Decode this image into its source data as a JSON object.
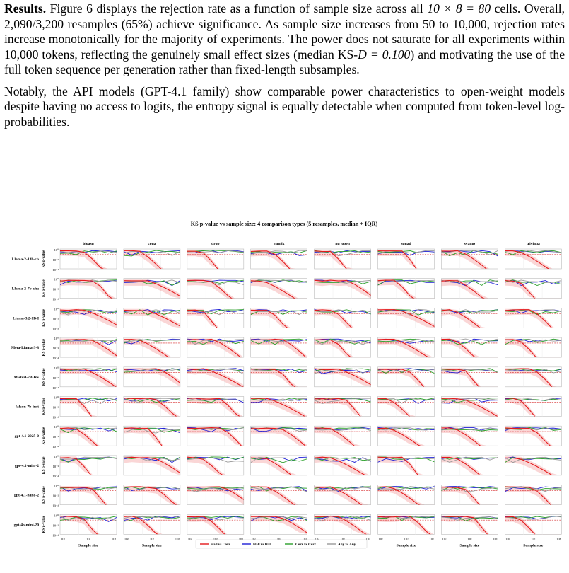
{
  "paragraph1": {
    "run_head": "Results.",
    "p1_a": " Figure 6 displays the rejection rate as a function of sample size across all ",
    "p1_math": "10 × 8 = 80",
    "p1_b": " cells. Overall, 2,090/3,200 resamples (65%) achieve significance. As sample size increases from 50 to 10,000, rejection rates increase monotonically for the majority of experiments. The power does not saturate for all experiments within 10,000 tokens, reflecting the genuinely small effect sizes (median KS-",
    "p1_math2": "D = 0.100",
    "p1_c": ") and motivating the use of the full token sequence per generation rather than fixed-length subsamples."
  },
  "paragraph2": "Notably, the API models (GPT-4.1 family) show comparable power characteristics to open-weight models despite having no access to logits, the entropy signal is equally detectable when computed from token-level log-probabilities.",
  "figure": {
    "title": "KS p-value vs sample size: 4 comparison types (5 resamples, median + IQR)",
    "columns": [
      "bioasq",
      "coqa",
      "drop",
      "gsm8k",
      "nq_open",
      "squad",
      "svamp",
      "triviaqa"
    ],
    "rows": [
      "Llama-2-13b-ch",
      "Llama-2-7b-cha",
      "Llama-3.2-1B-I",
      "Meta-Llama-3-8",
      "Mistral-7B-Ins",
      "falcon-7b-inst",
      "gpt-4.1-2025-0",
      "gpt-4.1-mini-2",
      "gpt-4.1-nano-2",
      "gpt-4o-mini-20"
    ],
    "ylabel": "KS p-value",
    "xlabel": "Sample size",
    "y_ticks": [
      "10⁰",
      "10⁻²",
      "10⁻⁴"
    ],
    "x_ticks": [
      "10²",
      "10³",
      "10⁴"
    ],
    "legend": [
      {
        "label": "Hall vs Corr",
        "color": "#e41a1c"
      },
      {
        "label": "Hall vs Hall",
        "color": "#1f1fd6"
      },
      {
        "label": "Corr vs Corr",
        "color": "#2ca02c"
      },
      {
        "label": "Any vs Any",
        "color": "#999999"
      }
    ],
    "threshold_color": "#d62728"
  }
}
